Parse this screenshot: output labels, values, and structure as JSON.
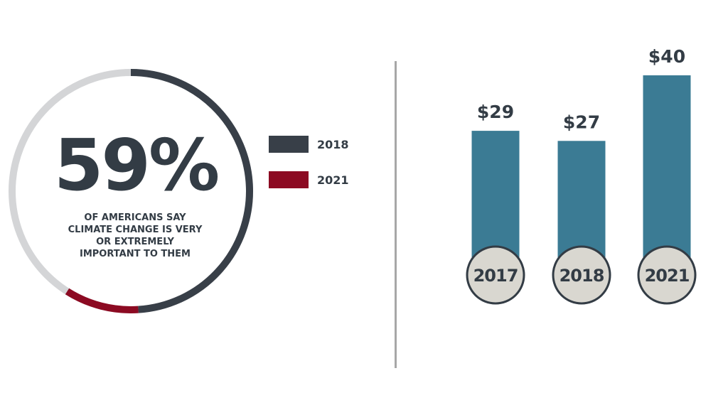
{
  "donut": {
    "percent_label": "59%",
    "caption": "OF AMERICANS SAY CLIMATE CHANGE IS VERY OR EXTREMELY IMPORTANT TO THEM",
    "colors": {
      "track": "#d4d5d7",
      "series_2018": "#383f48",
      "series_2021": "#8c0a22"
    }
  },
  "legend": {
    "items": [
      {
        "label": "2018",
        "color": "#383f48"
      },
      {
        "label": "2021",
        "color": "#8c0a22"
      }
    ]
  },
  "chart_data": [
    {
      "type": "pie",
      "subtitle": "OF AMERICANS SAY CLIMATE CHANGE IS VERY OR EXTREMELY IMPORTANT TO THEM",
      "center_label": "59%",
      "series": [
        {
          "name": "2018",
          "value": 49
        },
        {
          "name": "2021",
          "value": 59
        }
      ],
      "legend": "right"
    },
    {
      "type": "bar",
      "categories": [
        "2017",
        "2018",
        "2021"
      ],
      "values": [
        29,
        27,
        40
      ],
      "value_labels": [
        "$29",
        "$27",
        "$40"
      ],
      "title": "",
      "xlabel": "",
      "ylabel": "",
      "ylim": [
        0,
        40
      ],
      "grid": false,
      "colors": {
        "bar": "#3b7b94",
        "badge_fill": "#d9d7d0",
        "badge_stroke": "#333c45",
        "text": "#333c45"
      }
    }
  ]
}
